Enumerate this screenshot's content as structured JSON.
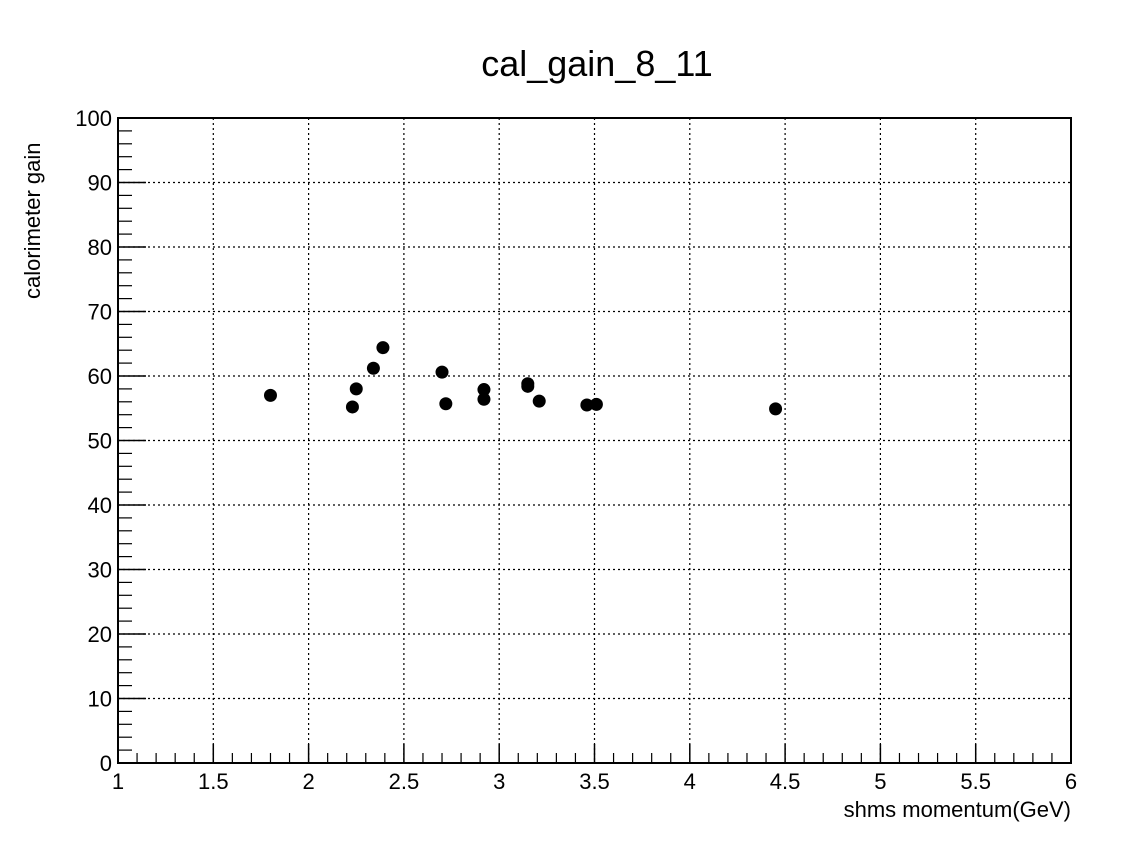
{
  "chart_data": {
    "type": "scatter",
    "title": "cal_gain_8_11",
    "xlabel": "shms momentum(GeV)",
    "ylabel": "calorimeter gain",
    "xlim": [
      1,
      6
    ],
    "ylim": [
      0,
      100
    ],
    "grid": true,
    "x_ticks": [
      "1",
      "1.5",
      "2",
      "2.5",
      "3",
      "3.5",
      "4",
      "4.5",
      "5",
      "5.5",
      "6"
    ],
    "y_ticks": [
      "0",
      "10",
      "20",
      "30",
      "40",
      "50",
      "60",
      "70",
      "80",
      "90",
      "100"
    ],
    "x": [
      1.8,
      2.23,
      2.25,
      2.34,
      2.39,
      2.7,
      2.72,
      2.92,
      2.92,
      3.15,
      3.15,
      3.21,
      3.46,
      3.51,
      4.45
    ],
    "y": [
      57.0,
      55.2,
      58.0,
      61.2,
      64.4,
      60.6,
      55.7,
      57.9,
      56.4,
      58.8,
      58.4,
      56.1,
      55.5,
      55.6,
      54.9
    ]
  },
  "colors": {
    "marker": "#000000",
    "grid": "#000000",
    "background": "#ffffff"
  }
}
